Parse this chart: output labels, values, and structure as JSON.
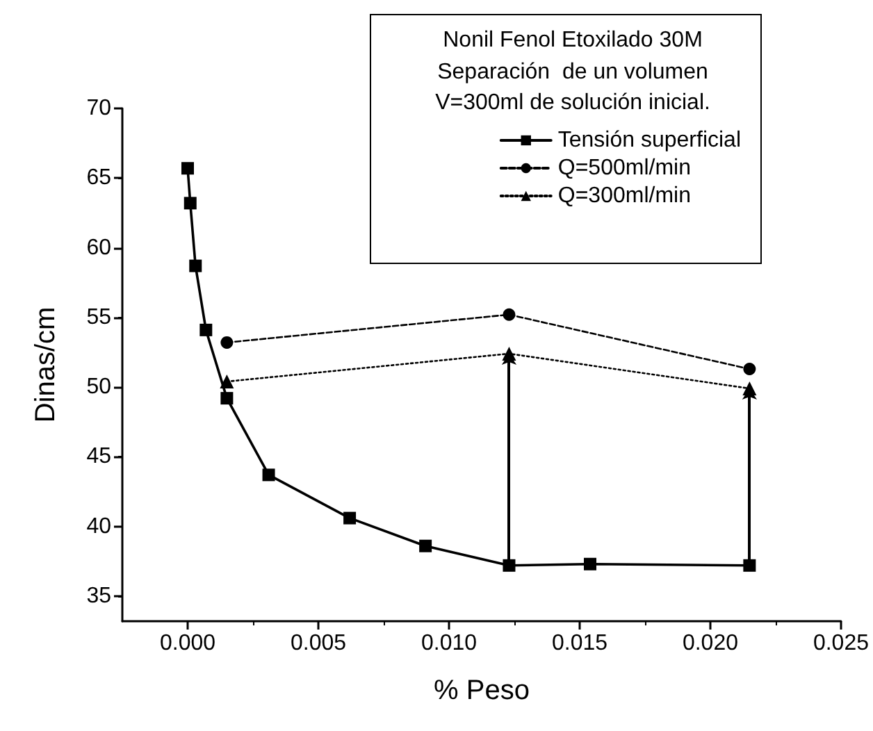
{
  "chart_data": {
    "type": "line",
    "title": "Nonil Fenol Etoxilado 30M",
    "subtitle": "Separación  de un volumen\nV=300ml de solución inicial.",
    "xlabel": "% Peso",
    "ylabel": "Dinas/cm",
    "xlim": [
      -0.0025,
      0.025
    ],
    "xticks": [
      {
        "value": 0,
        "label": "0.000"
      },
      0.005,
      {
        "value": 0.01,
        "label": "0.010"
      },
      0.015,
      {
        "value": 0.02,
        "label": "0.020"
      },
      0.025
    ],
    "ylim": [
      33.2,
      70
    ],
    "yticks": [
      35,
      40,
      45,
      50,
      55,
      60,
      65,
      70
    ],
    "grid": false,
    "legend": "top right",
    "series": [
      {
        "name": "Tensión superficial",
        "color": "#000000",
        "marker": "square",
        "line_style": "solid",
        "x": [
          0.0,
          0.0001,
          0.0003,
          0.0007,
          0.0015,
          0.0031,
          0.0062,
          0.0091,
          0.0123,
          0.0154,
          0.0215
        ],
        "values": [
          65.7,
          63.2,
          58.7,
          54.1,
          49.2,
          43.7,
          40.6,
          38.6,
          37.2,
          37.3,
          37.2
        ]
      },
      {
        "name": "Q=500ml/min",
        "color": "#000000",
        "marker": "circle",
        "line_style": "dashed",
        "x": [
          0.0015,
          0.0123,
          0.0215
        ],
        "values": [
          53.2,
          55.2,
          51.3
        ]
      },
      {
        "name": "Q=300ml/min",
        "color": "#000000",
        "marker": "triangle",
        "line_style": "dotted",
        "x": [
          0.0015,
          0.0123,
          0.0215
        ],
        "values": [
          50.4,
          52.4,
          49.9
        ]
      }
    ]
  }
}
